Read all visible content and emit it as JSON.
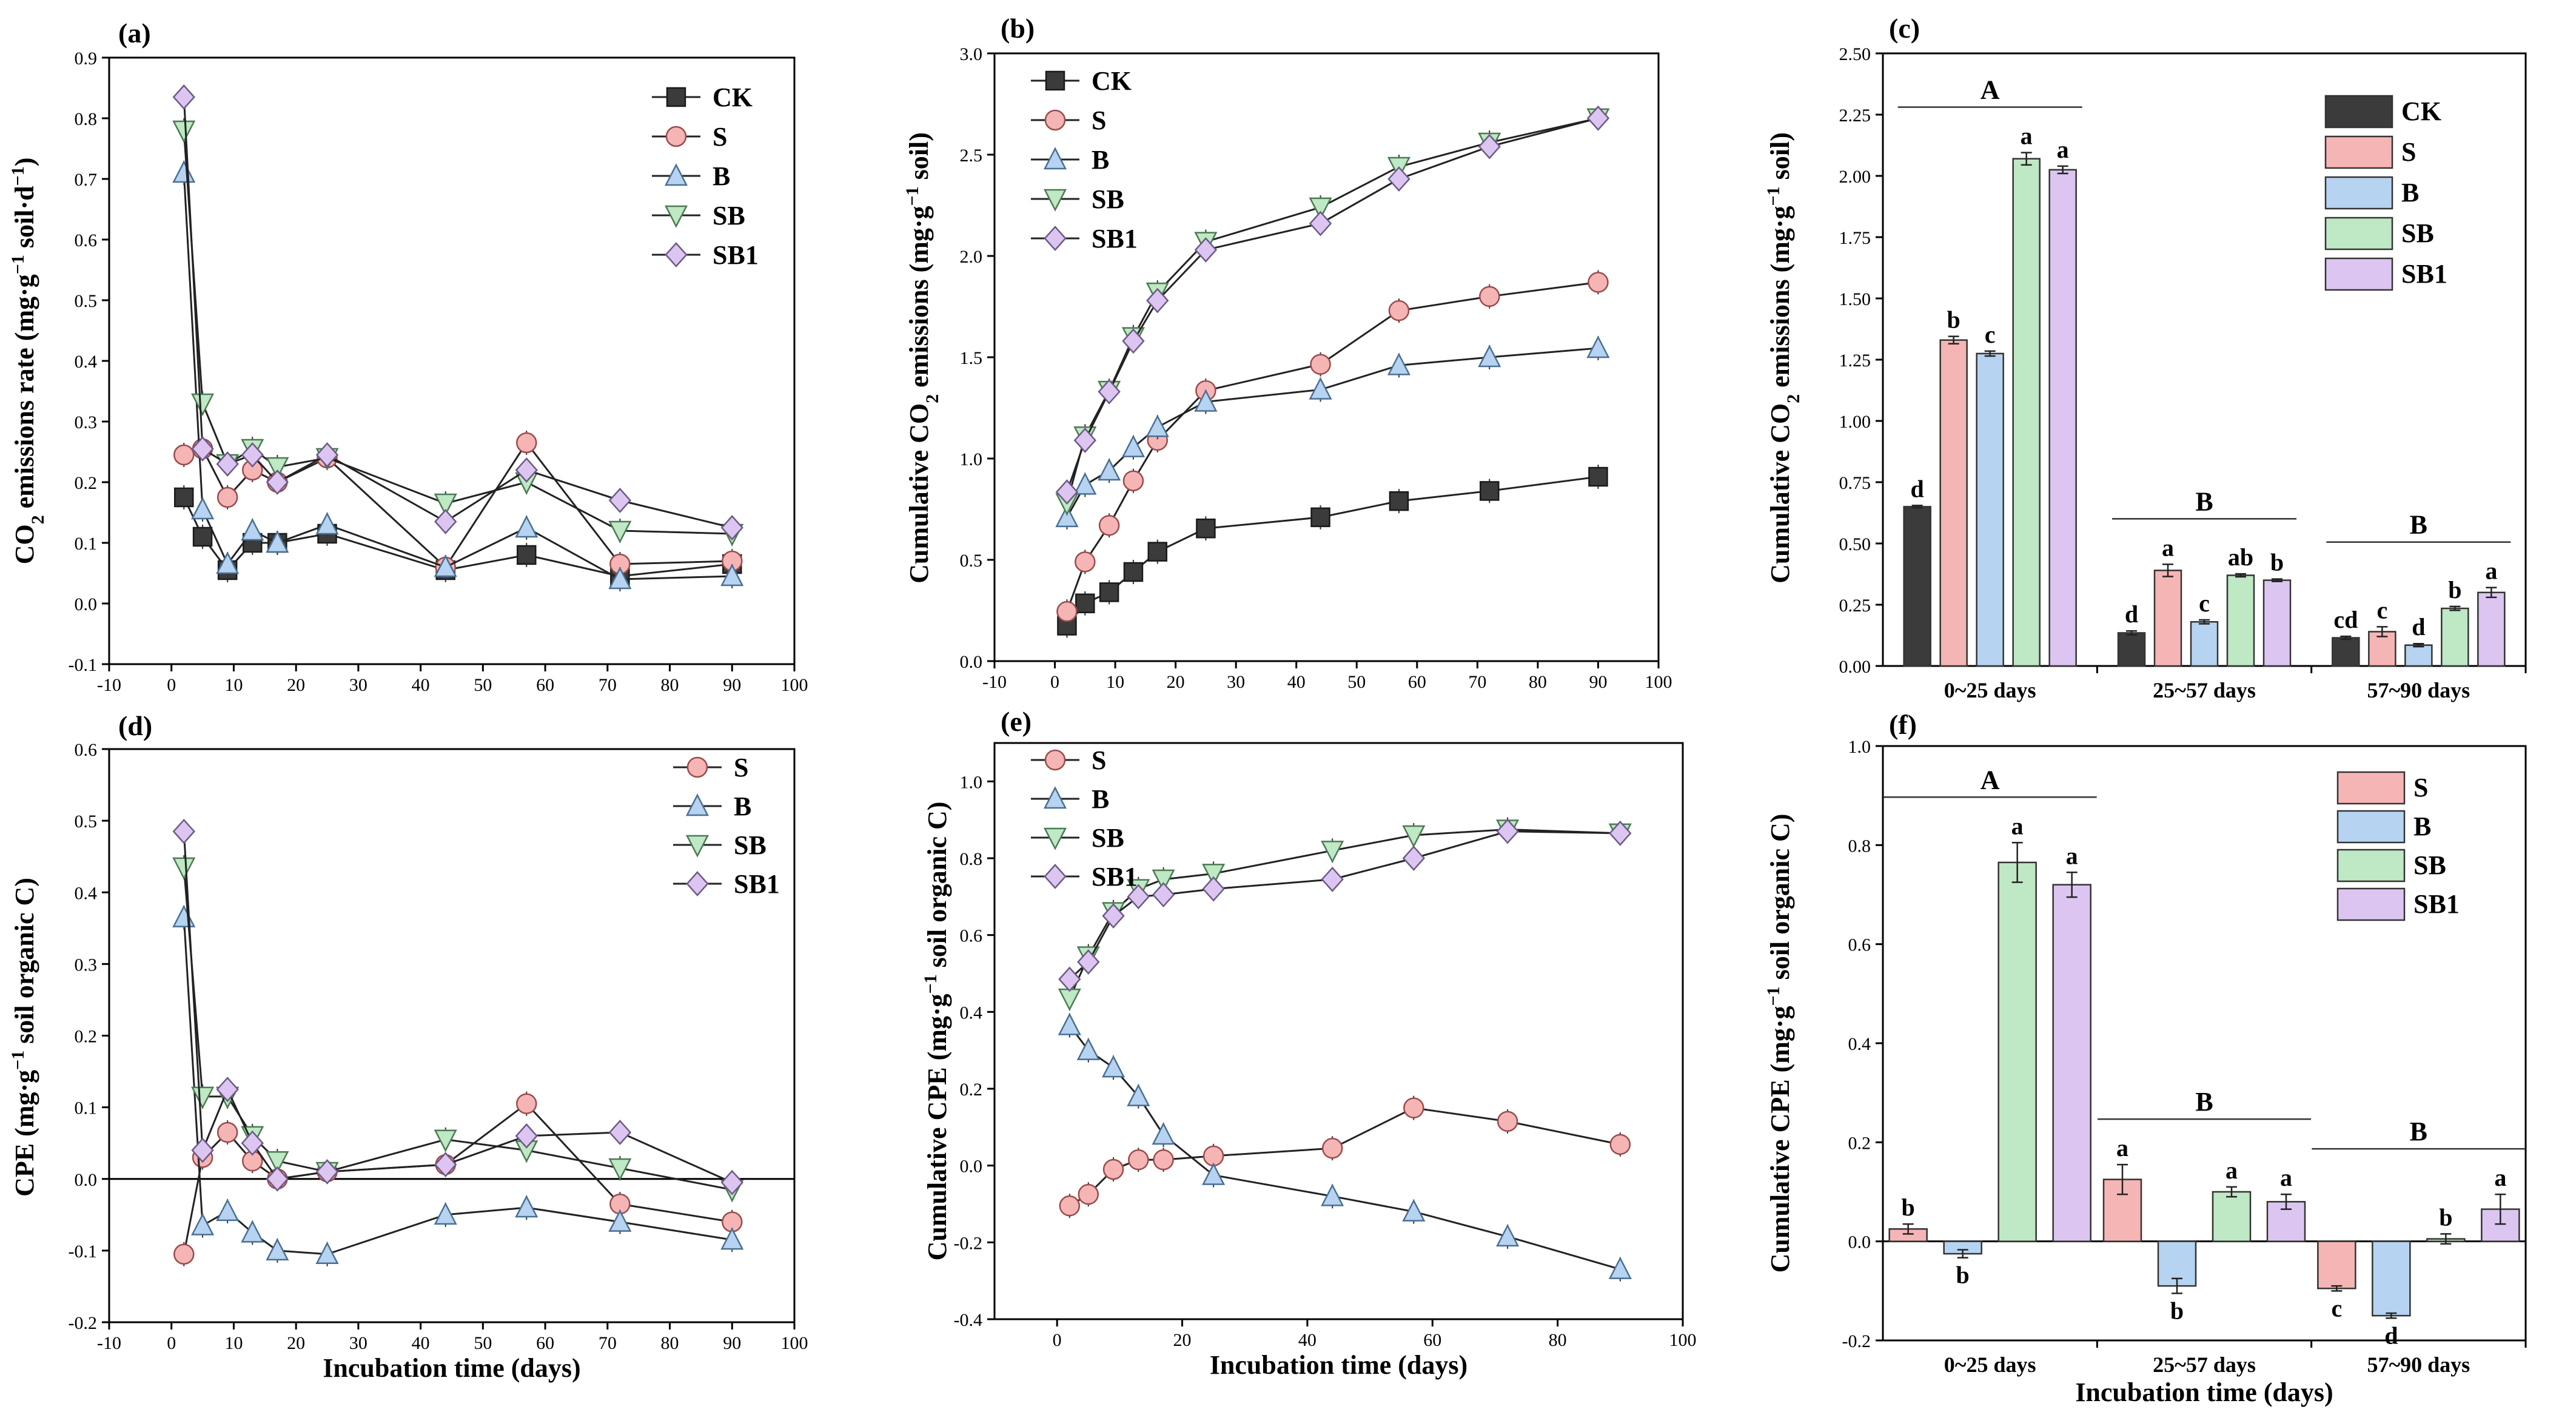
{
  "figure": {
    "panel_labels": [
      "(a)",
      "(b)",
      "(c)",
      "(d)",
      "(e)",
      "(f)"
    ],
    "x_axis_title": "Incubation time (days)"
  },
  "series_colors": {
    "CK": {
      "fill": "#3b3b3b",
      "stroke": "#1a1a1a"
    },
    "S": {
      "fill": "#f6b5b5",
      "stroke": "#9a4b4b"
    },
    "B": {
      "fill": "#b6d3f1",
      "stroke": "#4a6f93"
    },
    "SB": {
      "fill": "#bfe8c4",
      "stroke": "#4b7a52"
    },
    "SB1": {
      "fill": "#dcc6f1",
      "stroke": "#6c5a86"
    }
  },
  "marker_shapes": {
    "CK": "square",
    "S": "circle",
    "B": "triangle-up",
    "SB": "triangle-down",
    "SB1": "diamond"
  },
  "chart_data": [
    {
      "id": "a",
      "type": "line",
      "title": "(a)",
      "xlabel": "",
      "ylabel": "CO2 emissions rate (mg·g−1 soil·d−1)",
      "ylabel_parts": {
        "main1": "CO",
        "sub": "2",
        "main2": " emissions rate (mg·g",
        "sup": "−1",
        "main3": " soil·d",
        "sup2": "−1",
        "main4": ")"
      },
      "xlim": [
        -10,
        100
      ],
      "ylim": [
        -0.1,
        0.9
      ],
      "xticks": [
        "-10",
        "0",
        "10",
        "20",
        "30",
        "40",
        "50",
        "60",
        "70",
        "80",
        "90",
        "100"
      ],
      "yticks": [
        "-0.1",
        "0.0",
        "0.1",
        "0.2",
        "0.3",
        "0.4",
        "0.5",
        "0.6",
        "0.7",
        "0.8",
        "0.9"
      ],
      "x": [
        2,
        5,
        9,
        13,
        17,
        25,
        44,
        57,
        72,
        90
      ],
      "series": [
        {
          "name": "CK",
          "values": [
            0.175,
            0.11,
            0.055,
            0.1,
            0.1,
            0.115,
            0.055,
            0.08,
            0.045,
            0.065
          ]
        },
        {
          "name": "S",
          "values": [
            0.245,
            0.255,
            0.175,
            0.22,
            0.2,
            0.24,
            0.06,
            0.265,
            0.065,
            0.07
          ]
        },
        {
          "name": "B",
          "values": [
            0.71,
            0.155,
            0.065,
            0.12,
            0.1,
            0.13,
            0.06,
            0.125,
            0.04,
            0.045
          ]
        },
        {
          "name": "SB",
          "values": [
            0.78,
            0.33,
            0.23,
            0.255,
            0.225,
            0.24,
            0.165,
            0.2,
            0.12,
            0.115
          ]
        },
        {
          "name": "SB1",
          "values": [
            0.835,
            0.255,
            0.23,
            0.245,
            0.2,
            0.245,
            0.135,
            0.22,
            0.17,
            0.125
          ]
        }
      ],
      "legend": [
        "CK",
        "S",
        "B",
        "SB",
        "SB1"
      ],
      "legend_position": "top-right"
    },
    {
      "id": "b",
      "type": "line",
      "title": "(b)",
      "xlabel": "",
      "ylabel": "Cumulative CO2 emissions (mg·g−1 soil)",
      "ylabel_parts": {
        "main1": "Cumulative CO",
        "sub": "2",
        "main2": " emissions (mg·g",
        "sup": "−1",
        "main3": " soil)"
      },
      "xlim": [
        -10,
        100
      ],
      "ylim": [
        0,
        3.0
      ],
      "xticks": [
        "-10",
        "0",
        "10",
        "20",
        "30",
        "40",
        "50",
        "60",
        "70",
        "80",
        "90",
        "100"
      ],
      "yticks": [
        "0.0",
        "0.5",
        "1.0",
        "1.5",
        "2.0",
        "2.5",
        "3.0"
      ],
      "x": [
        2,
        5,
        9,
        13,
        17,
        25,
        44,
        57,
        72,
        90
      ],
      "series": [
        {
          "name": "CK",
          "values": [
            0.175,
            0.285,
            0.34,
            0.44,
            0.54,
            0.655,
            0.71,
            0.79,
            0.84,
            0.91
          ]
        },
        {
          "name": "S",
          "values": [
            0.245,
            0.49,
            0.67,
            0.89,
            1.09,
            1.335,
            1.465,
            1.73,
            1.8,
            1.87
          ]
        },
        {
          "name": "B",
          "values": [
            0.71,
            0.87,
            0.94,
            1.055,
            1.155,
            1.28,
            1.34,
            1.46,
            1.5,
            1.545
          ]
        },
        {
          "name": "SB",
          "values": [
            0.78,
            1.11,
            1.335,
            1.6,
            1.82,
            2.07,
            2.24,
            2.44,
            2.56,
            2.68
          ]
        },
        {
          "name": "SB1",
          "values": [
            0.835,
            1.09,
            1.33,
            1.58,
            1.78,
            2.03,
            2.16,
            2.38,
            2.54,
            2.68
          ]
        }
      ],
      "legend": [
        "CK",
        "S",
        "B",
        "SB",
        "SB1"
      ],
      "legend_position": "top-left"
    },
    {
      "id": "c",
      "type": "bar",
      "title": "(c)",
      "xlabel": "",
      "ylabel": "Cumulative CO2 emissions (mg·g−1 soil)",
      "ylabel_parts": {
        "main1": "Cumulative CO",
        "sub": "2",
        "main2": " emissions (mg·g",
        "sup": "−1",
        "main3": " soil)"
      },
      "ylim": [
        0,
        2.5
      ],
      "yticks": [
        "0.00",
        "0.25",
        "0.50",
        "0.75",
        "1.00",
        "1.25",
        "1.50",
        "1.75",
        "2.00",
        "2.25",
        "2.50"
      ],
      "categories": [
        "0~25 days",
        "25~57 days",
        "57~90 days"
      ],
      "group_letters": [
        "A",
        "B",
        "B"
      ],
      "series": [
        {
          "name": "CK",
          "values": [
            0.65,
            0.135,
            0.115
          ],
          "errors": [
            0.005,
            0.008,
            0.006
          ],
          "letters": [
            "d",
            "d",
            "cd"
          ]
        },
        {
          "name": "S",
          "values": [
            1.33,
            0.39,
            0.14
          ],
          "errors": [
            0.015,
            0.025,
            0.02
          ],
          "letters": [
            "b",
            "a",
            "c"
          ]
        },
        {
          "name": "B",
          "values": [
            1.275,
            0.18,
            0.085
          ],
          "errors": [
            0.01,
            0.008,
            0.006
          ],
          "letters": [
            "c",
            "c",
            "d"
          ]
        },
        {
          "name": "SB",
          "values": [
            2.07,
            0.37,
            0.235
          ],
          "errors": [
            0.025,
            0.006,
            0.008
          ],
          "letters": [
            "a",
            "ab",
            "b"
          ]
        },
        {
          "name": "SB1",
          "values": [
            2.025,
            0.35,
            0.3
          ],
          "errors": [
            0.015,
            0.005,
            0.02
          ],
          "letters": [
            "a",
            "b",
            "a"
          ]
        }
      ],
      "legend": [
        "CK",
        "S",
        "B",
        "SB",
        "SB1"
      ],
      "legend_position": "top-right"
    },
    {
      "id": "d",
      "type": "line",
      "title": "(d)",
      "xlabel": "Incubation time (days)",
      "ylabel": "CPE (mg·g−1 soil organic C)",
      "ylabel_parts": {
        "main1": "CPE (mg·g",
        "sup": "−1",
        "main2": " soil organic C)"
      },
      "xlim": [
        -10,
        100
      ],
      "ylim": [
        -0.2,
        0.6
      ],
      "xticks": [
        "-10",
        "0",
        "10",
        "20",
        "30",
        "40",
        "50",
        "60",
        "70",
        "80",
        "90",
        "100"
      ],
      "yticks": [
        "-0.2",
        "-0.1",
        "0.0",
        "0.1",
        "0.2",
        "0.3",
        "0.4",
        "0.5",
        "0.6"
      ],
      "x": [
        2,
        5,
        9,
        13,
        17,
        25,
        44,
        57,
        72,
        90
      ],
      "series": [
        {
          "name": "S",
          "values": [
            -0.105,
            0.03,
            0.065,
            0.025,
            0.0,
            0.01,
            0.02,
            0.105,
            -0.035,
            -0.06
          ]
        },
        {
          "name": "B",
          "values": [
            0.365,
            -0.065,
            -0.045,
            -0.075,
            -0.1,
            -0.105,
            -0.05,
            -0.04,
            -0.06,
            -0.085
          ]
        },
        {
          "name": "SB",
          "values": [
            0.435,
            0.115,
            0.115,
            0.06,
            0.025,
            0.01,
            0.055,
            0.04,
            0.015,
            -0.015
          ]
        },
        {
          "name": "SB1",
          "values": [
            0.485,
            0.04,
            0.125,
            0.05,
            0.0,
            0.01,
            0.02,
            0.06,
            0.065,
            -0.005
          ]
        }
      ],
      "legend": [
        "S",
        "B",
        "SB",
        "SB1"
      ],
      "legend_position": "top-right"
    },
    {
      "id": "e",
      "type": "line",
      "title": "(e)",
      "xlabel": "Incubation time (days)",
      "ylabel": "Cumulative CPE (mg·g−1 soil organic C)",
      "ylabel_parts": {
        "main1": "Cumulative CPE (mg·g",
        "sup": "−1",
        "main2": " soil organic C)"
      },
      "xlim": [
        -10,
        100
      ],
      "ylim": [
        -0.4,
        1.1
      ],
      "xticks": [
        "0",
        "20",
        "40",
        "60",
        "80",
        "100"
      ],
      "yticks": [
        "-0.4",
        "-0.2",
        "0.0",
        "0.2",
        "0.4",
        "0.6",
        "0.8",
        "1.0"
      ],
      "x": [
        2,
        5,
        9,
        13,
        17,
        25,
        44,
        57,
        72,
        90
      ],
      "series": [
        {
          "name": "S",
          "values": [
            -0.105,
            -0.075,
            -0.01,
            0.015,
            0.015,
            0.025,
            0.045,
            0.15,
            0.115,
            0.055
          ]
        },
        {
          "name": "B",
          "values": [
            0.365,
            0.3,
            0.255,
            0.18,
            0.08,
            -0.025,
            -0.08,
            -0.12,
            -0.185,
            -0.27
          ]
        },
        {
          "name": "SB",
          "values": [
            0.435,
            0.545,
            0.66,
            0.72,
            0.745,
            0.76,
            0.82,
            0.86,
            0.875,
            0.865
          ]
        },
        {
          "name": "SB1",
          "values": [
            0.485,
            0.53,
            0.65,
            0.7,
            0.705,
            0.72,
            0.745,
            0.8,
            0.87,
            0.865
          ]
        }
      ],
      "legend": [
        "S",
        "B",
        "SB",
        "SB1"
      ],
      "legend_position": "top-left"
    },
    {
      "id": "f",
      "type": "bar",
      "title": "(f)",
      "xlabel": "Incubation time (days)",
      "ylabel": "Cumulative CPE (mg·g−1 soil organic C)",
      "ylabel_parts": {
        "main1": "Cumulative CPE (mg·g",
        "sup": "−1",
        "main2": " soil organic C)"
      },
      "ylim": [
        -0.2,
        1.0
      ],
      "yticks": [
        "-0.2",
        "0.0",
        "0.2",
        "0.4",
        "0.6",
        "0.8",
        "1.0"
      ],
      "categories": [
        "0~25 days",
        "25~57 days",
        "57~90 days"
      ],
      "group_letters": [
        "A",
        "B",
        "B"
      ],
      "series": [
        {
          "name": "S",
          "values": [
            0.025,
            0.125,
            -0.095
          ],
          "errors": [
            0.01,
            0.03,
            0.005
          ],
          "letters": [
            "b",
            "a",
            "c"
          ]
        },
        {
          "name": "B",
          "values": [
            -0.025,
            -0.09,
            -0.15
          ],
          "errors": [
            0.008,
            0.015,
            0.005
          ],
          "letters": [
            "b",
            "b",
            "d"
          ]
        },
        {
          "name": "SB",
          "values": [
            0.765,
            0.1,
            0.005
          ],
          "errors": [
            0.04,
            0.01,
            0.01
          ],
          "letters": [
            "a",
            "a",
            "b"
          ]
        },
        {
          "name": "SB1",
          "values": [
            0.72,
            0.08,
            0.065
          ],
          "errors": [
            0.025,
            0.015,
            0.03
          ],
          "letters": [
            "a",
            "a",
            "a"
          ]
        }
      ],
      "legend": [
        "S",
        "B",
        "SB",
        "SB1"
      ],
      "legend_position": "top-right"
    }
  ]
}
